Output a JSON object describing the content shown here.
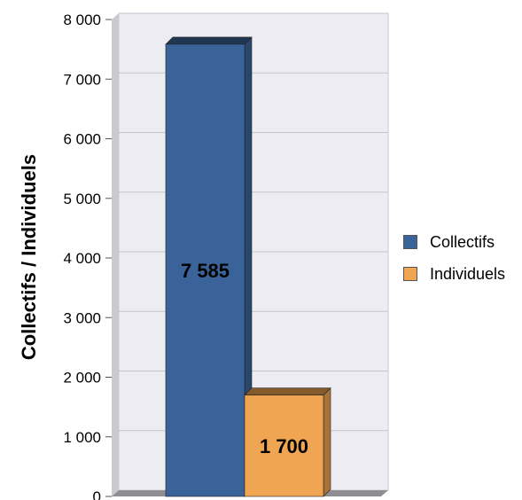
{
  "chart_data": {
    "type": "bar",
    "ylabel": "Collectifs / Individuels",
    "ylim": [
      0,
      8000
    ],
    "yticks": [
      "0",
      "1 000",
      "2 000",
      "3 000",
      "4 000",
      "5 000",
      "6 000",
      "7 000",
      "8 000"
    ],
    "ytick_values": [
      0,
      1000,
      2000,
      3000,
      4000,
      5000,
      6000,
      7000,
      8000
    ],
    "grid": true,
    "legend_position": "right",
    "series": [
      {
        "name": "Collectifs",
        "values": [
          7585
        ],
        "label": "7 585",
        "color": "#3a6499"
      },
      {
        "name": "Individuels",
        "values": [
          1700
        ],
        "label": "1 700",
        "color": "#f0a552"
      }
    ]
  }
}
